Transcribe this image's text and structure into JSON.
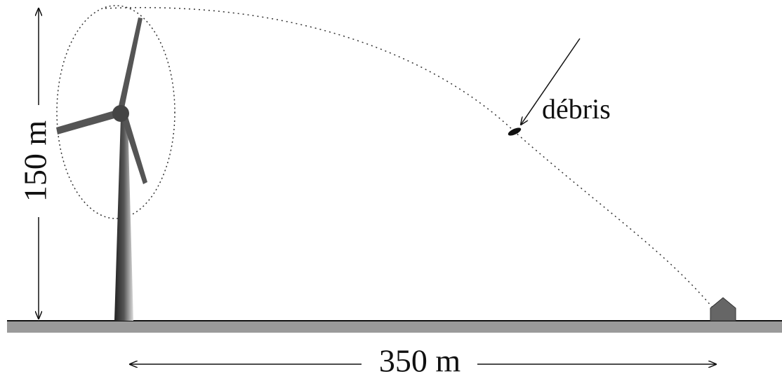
{
  "labels": {
    "height": "150 m",
    "debris": "débris",
    "distance": "350 m"
  }
}
